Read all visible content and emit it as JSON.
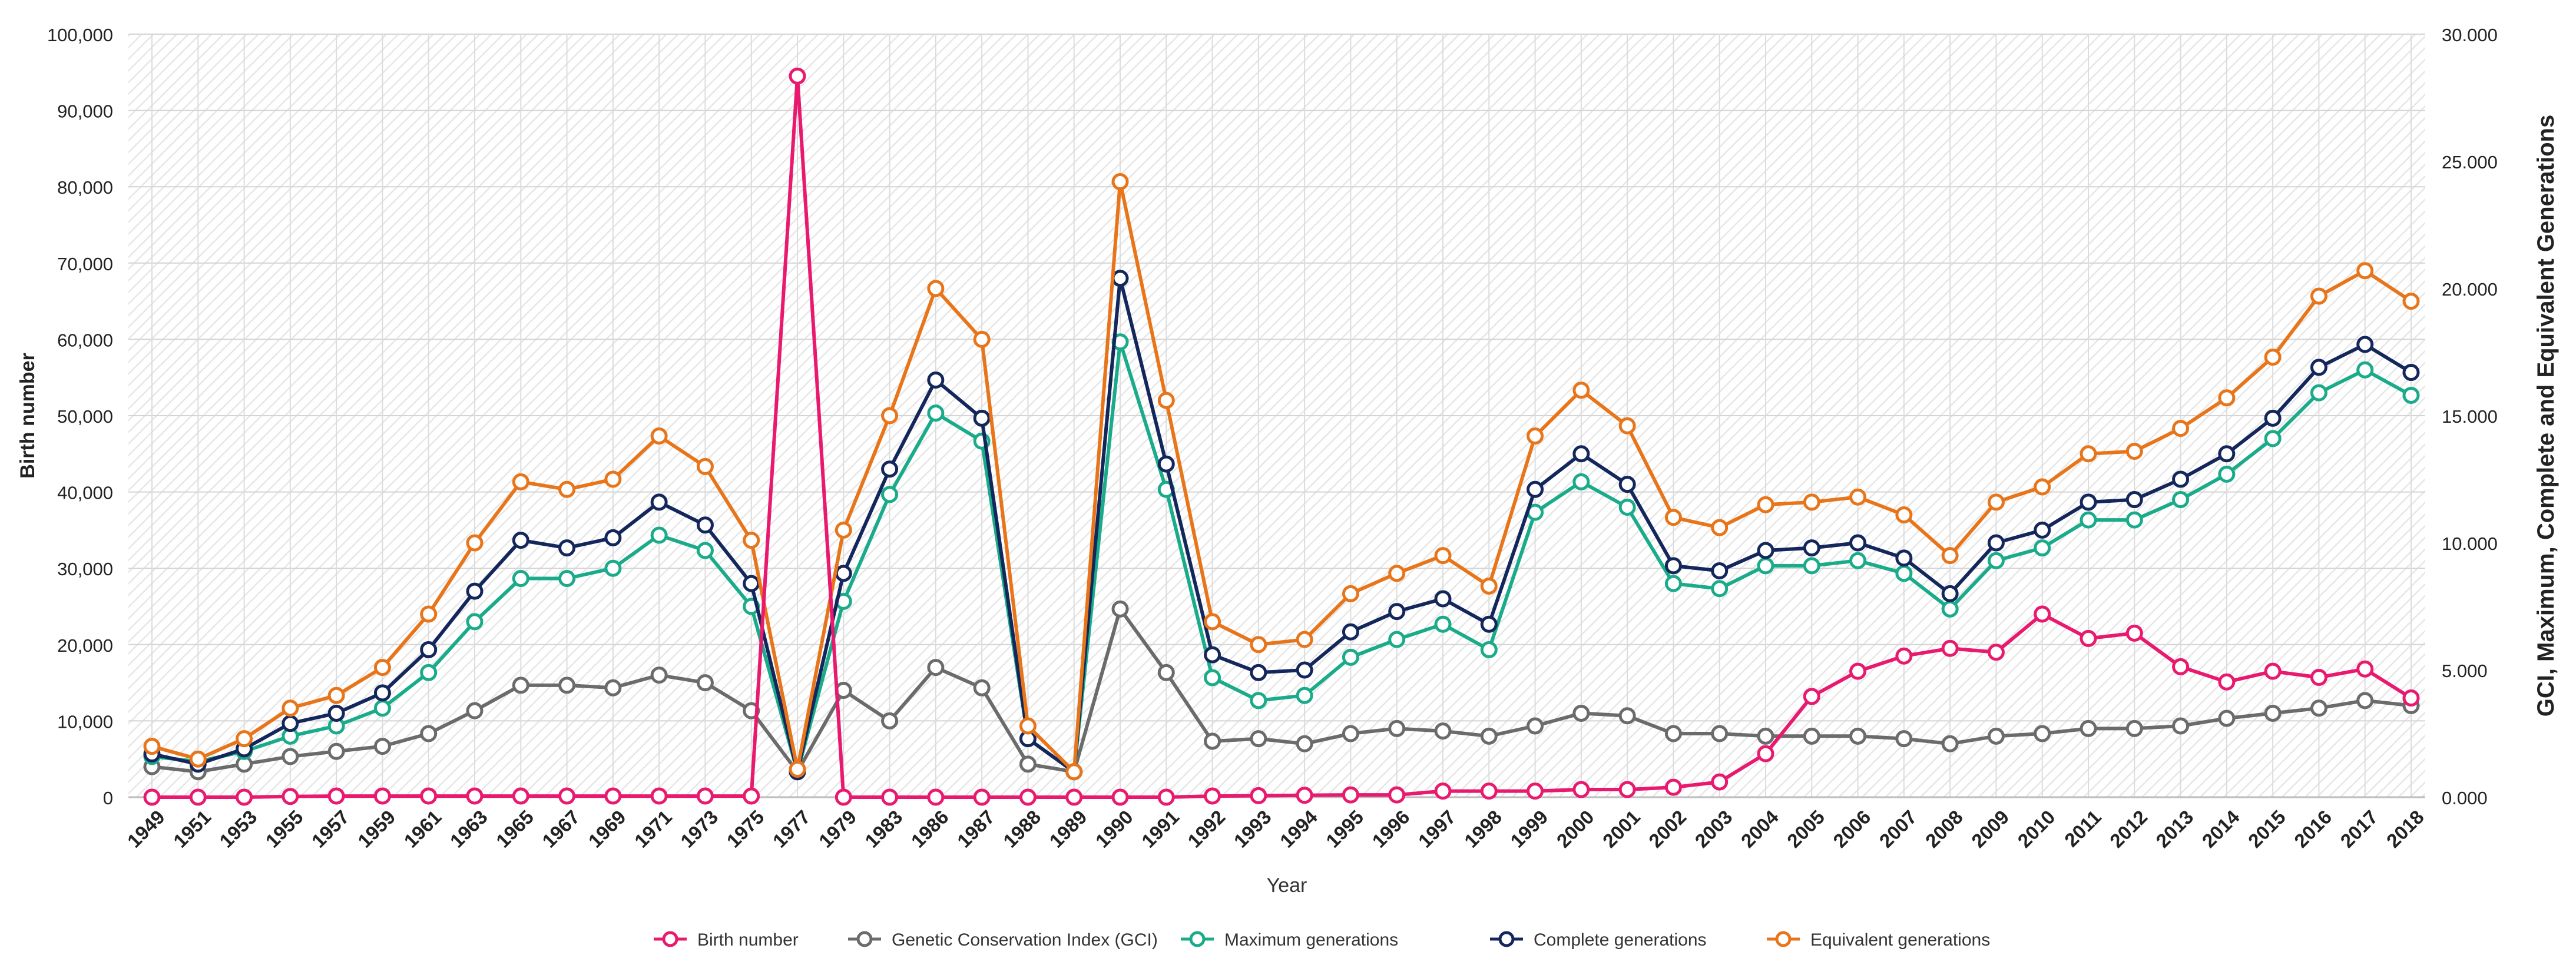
{
  "chart_data": {
    "type": "line",
    "title": "",
    "xlabel": "Year",
    "ylabel": "Birth number",
    "y2label": "GCI, Maximum, Complete and Equivalent Generations",
    "ylim": [
      0,
      100000
    ],
    "y2lim": [
      0,
      30
    ],
    "yticks": [
      0,
      10000,
      20000,
      30000,
      40000,
      50000,
      60000,
      70000,
      80000,
      90000,
      100000
    ],
    "yticklabels": [
      "0",
      "10,000",
      "20,000",
      "30,000",
      "40,000",
      "50,000",
      "60,000",
      "70,000",
      "80,000",
      "90,000",
      "100,000"
    ],
    "y2ticks": [
      0,
      5,
      10,
      15,
      20,
      25,
      30
    ],
    "y2ticklabels": [
      "0.000",
      "5.000",
      "10.000",
      "15.000",
      "20.000",
      "25.000",
      "30.000"
    ],
    "categories": [
      "1949",
      "1951",
      "1953",
      "1955",
      "1957",
      "1959",
      "1961",
      "1963",
      "1965",
      "1967",
      "1969",
      "1971",
      "1973",
      "1975",
      "1977",
      "1979",
      "1983",
      "1986",
      "1987",
      "1988",
      "1989",
      "1990",
      "1991",
      "1992",
      "1993",
      "1994",
      "1995",
      "1996",
      "1997",
      "1998",
      "1999",
      "2000",
      "2001",
      "2002",
      "2003",
      "2004",
      "2005",
      "2006",
      "2007",
      "2008",
      "2009",
      "2010",
      "2011",
      "2012",
      "2013",
      "2014",
      "2015",
      "2016",
      "2017",
      "2018"
    ],
    "series": [
      {
        "name": "Birth number",
        "axis": "left",
        "color": "#e8196e",
        "values": [
          0,
          0,
          0,
          100,
          150,
          150,
          150,
          150,
          150,
          150,
          150,
          150,
          150,
          150,
          94500,
          0,
          0,
          0,
          0,
          0,
          0,
          0,
          0,
          150,
          200,
          250,
          300,
          300,
          800,
          800,
          800,
          1000,
          1000,
          1300,
          2000,
          5700,
          13200,
          16500,
          18500,
          19500,
          19000,
          24000,
          20800,
          21500,
          17100,
          15100,
          16500,
          15700,
          16800,
          13000
        ]
      },
      {
        "name": "Genetic Conservation Index (GCI)",
        "axis": "right",
        "color": "#6b6b6b",
        "values": [
          1.2,
          1.0,
          1.3,
          1.6,
          1.8,
          2.0,
          2.5,
          3.4,
          4.4,
          4.4,
          4.3,
          4.8,
          4.5,
          3.4,
          1.0,
          4.2,
          3.0,
          5.1,
          4.3,
          1.3,
          1.0,
          7.4,
          4.9,
          2.2,
          2.3,
          2.1,
          2.5,
          2.7,
          2.6,
          2.4,
          2.8,
          3.3,
          3.2,
          2.5,
          2.5,
          2.4,
          2.4,
          2.4,
          2.3,
          2.1,
          2.4,
          2.5,
          2.7,
          2.7,
          2.8,
          3.1,
          3.3,
          3.5,
          3.8,
          3.6
        ]
      },
      {
        "name": "Maximum generations",
        "axis": "right",
        "color": "#1aab8a",
        "values": [
          1.6,
          1.4,
          1.8,
          2.4,
          2.8,
          3.5,
          4.9,
          6.9,
          8.6,
          8.6,
          9.0,
          10.3,
          9.7,
          7.5,
          1.0,
          7.7,
          11.9,
          15.1,
          14.0,
          2.3,
          1.0,
          17.9,
          12.1,
          4.7,
          3.8,
          4.0,
          5.5,
          6.2,
          6.8,
          5.8,
          11.2,
          12.4,
          11.4,
          8.4,
          8.2,
          9.1,
          9.1,
          9.3,
          8.8,
          7.4,
          9.3,
          9.8,
          10.9,
          10.9,
          11.7,
          12.7,
          14.1,
          15.9,
          16.8,
          15.8
        ]
      },
      {
        "name": "Complete generations",
        "axis": "right",
        "color": "#13275c",
        "values": [
          1.7,
          1.3,
          1.9,
          2.9,
          3.3,
          4.1,
          5.8,
          8.1,
          10.1,
          9.8,
          10.2,
          11.6,
          10.7,
          8.4,
          1.0,
          8.8,
          12.9,
          16.4,
          14.9,
          2.3,
          1.0,
          20.4,
          13.1,
          5.6,
          4.9,
          5.0,
          6.5,
          7.3,
          7.8,
          6.8,
          12.1,
          13.5,
          12.3,
          9.1,
          8.9,
          9.7,
          9.8,
          10.0,
          9.4,
          8.0,
          10.0,
          10.5,
          11.6,
          11.7,
          12.5,
          13.5,
          14.9,
          16.9,
          17.8,
          16.7
        ]
      },
      {
        "name": "Equivalent generations",
        "axis": "right",
        "color": "#e8751a",
        "values": [
          2.0,
          1.5,
          2.3,
          3.5,
          4.0,
          5.1,
          7.2,
          10.0,
          12.4,
          12.1,
          12.5,
          14.2,
          13.0,
          10.1,
          1.1,
          10.5,
          15.0,
          20.0,
          18.0,
          2.8,
          1.0,
          24.2,
          15.6,
          6.9,
          6.0,
          6.2,
          8.0,
          8.8,
          9.5,
          8.3,
          14.2,
          16.0,
          14.6,
          11.0,
          10.6,
          11.5,
          11.6,
          11.8,
          11.1,
          9.5,
          11.6,
          12.2,
          13.5,
          13.6,
          14.5,
          15.7,
          17.3,
          19.7,
          20.7,
          19.5
        ]
      }
    ],
    "legend_position": "bottom-center",
    "grid": true
  }
}
